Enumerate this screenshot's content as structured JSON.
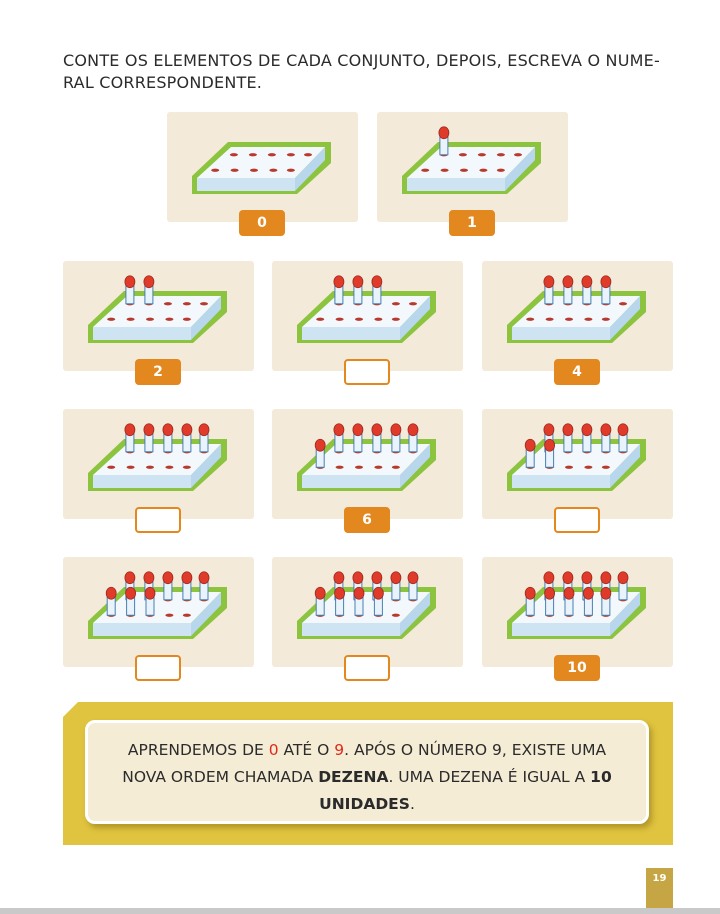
{
  "instruction": "CONTE OS ELEMENTOS DE CADA CONJUNTO, DEPOIS, ESCREVA O NUME-RAL CORRESPONDENTE.",
  "instruction_lines": [
    "CONTE OS ELEMENTOS DE CADA CONJUNTO, DEPOIS, ESCREVA O NUME-",
    "RAL CORRESPONDENTE."
  ],
  "sets": [
    {
      "count": 0,
      "answer": "0"
    },
    {
      "count": 1,
      "answer": "1"
    },
    {
      "count": 2,
      "answer": "2"
    },
    {
      "count": 3,
      "answer": ""
    },
    {
      "count": 4,
      "answer": "4"
    },
    {
      "count": 5,
      "answer": ""
    },
    {
      "count": 6,
      "answer": "6"
    },
    {
      "count": 7,
      "answer": ""
    },
    {
      "count": 8,
      "answer": ""
    },
    {
      "count": 9,
      "answer": ""
    },
    {
      "count": 10,
      "answer": "10"
    }
  ],
  "note": {
    "t1": "APRENDEMOS DE ",
    "n0": "0",
    "t2": " ATÉ O ",
    "n9": "9",
    "t3": ". APÓS O NÚMERO 9, EXISTE UMA NOVA ORDEM CHAMADA ",
    "dezena": "DEZENA",
    "t4": ". UMA DEZENA É IGUAL A ",
    "dez_unidades": "10 UNIDADES",
    "t5": "."
  },
  "page_number": "19",
  "colors": {
    "card_bg": "#f4ead9",
    "box_orange": "#e3871f",
    "board_green": "#8cc43f",
    "board_top": "#f3f8fc",
    "board_side": "#cfe4f3",
    "hole_red": "#b83a2e",
    "peg_red": "#e03a2a",
    "band_yellow": "#e0c33e",
    "highlight_red": "#e02a1a",
    "page_tab": "#c6a644"
  }
}
